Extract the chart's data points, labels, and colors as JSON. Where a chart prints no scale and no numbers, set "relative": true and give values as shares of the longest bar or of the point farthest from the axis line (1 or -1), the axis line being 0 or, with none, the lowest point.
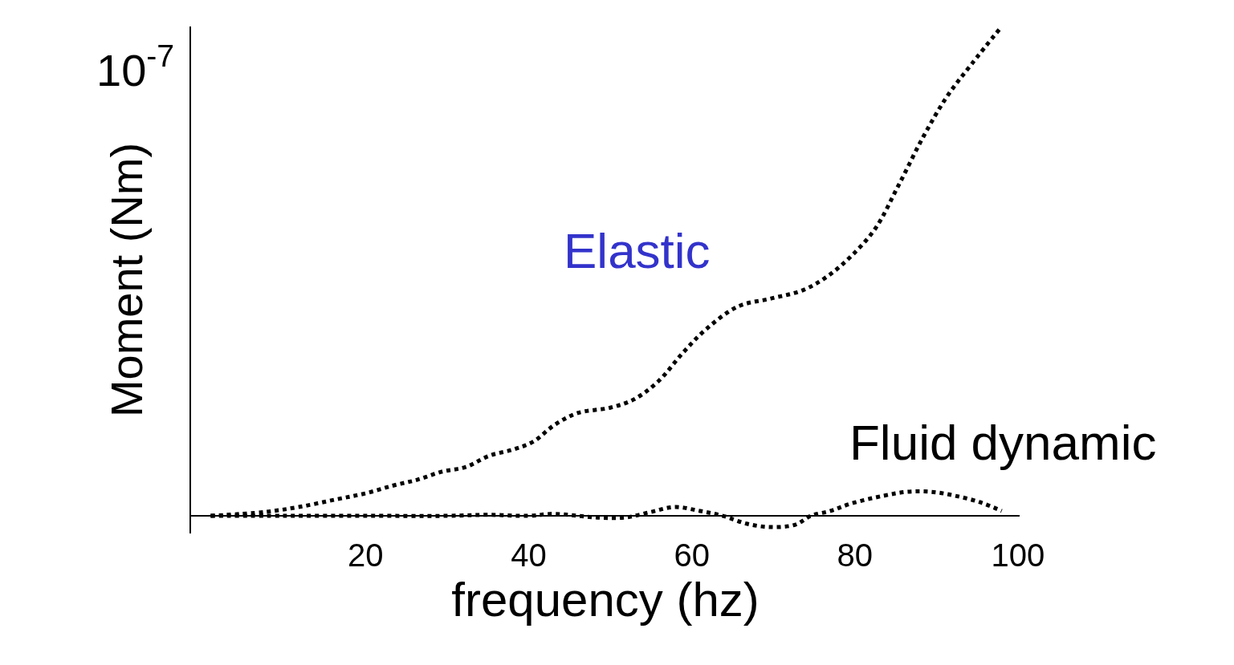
{
  "chart_data": {
    "type": "line",
    "relative": true,
    "xlabel": "frequency (hz)",
    "ylabel": "Moment (Nm)",
    "annotations": [
      "10$^{-7}$"
    ],
    "xlim": [
      -1.4,
      100.2
    ],
    "xticks": [
      20,
      40,
      60,
      80,
      100
    ],
    "legend": false,
    "line_style": "dotted",
    "marker": "none",
    "series": [
      {
        "name": "Elastic",
        "color": "#000000",
        "x": [
          1,
          7.7,
          11.8,
          16.5,
          20,
          23.4,
          26.4,
          29.3,
          32.3,
          35.2,
          38.2,
          40.6,
          43.1,
          46,
          50,
          52.9,
          55.9,
          58.9,
          61.8,
          65.7,
          69.7,
          73.6,
          76.6,
          79.5,
          82.5,
          85.4,
          88.4,
          91.3,
          94.3,
          98
        ],
        "values": [
          0,
          0.008,
          0.018,
          0.034,
          0.046,
          0.062,
          0.074,
          0.09,
          0.1,
          0.123,
          0.136,
          0.152,
          0.185,
          0.21,
          0.221,
          0.238,
          0.275,
          0.333,
          0.382,
          0.428,
          0.444,
          0.461,
          0.489,
          0.53,
          0.587,
          0.677,
          0.775,
          0.857,
          0.923,
          1
        ]
      },
      {
        "name": "Fluid dynamic",
        "color": "#000000",
        "x": [
          1,
          10,
          20,
          30,
          35,
          40,
          43,
          46,
          49,
          52,
          55,
          57.9,
          61,
          63.8,
          66.7,
          69.7,
          72.7,
          74.6,
          77,
          79.5,
          83.5,
          86.4,
          89.4,
          92.3,
          95.3,
          98
        ],
        "values": [
          0,
          0,
          0,
          0,
          0.002,
          0,
          0.004,
          0,
          -0.004,
          -0.003,
          0.008,
          0.018,
          0.01,
          0,
          -0.016,
          -0.023,
          -0.018,
          0,
          0.01,
          0.025,
          0.041,
          0.049,
          0.049,
          0.041,
          0.028,
          0.01
        ]
      }
    ]
  }
}
